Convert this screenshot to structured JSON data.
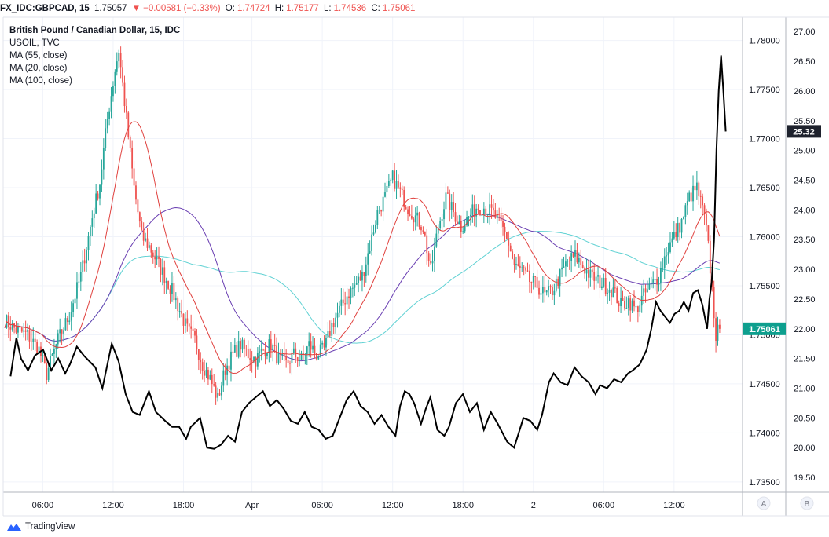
{
  "header": {
    "symbol": "FX_IDC:GBPCAD, 15",
    "last": "1.75057",
    "change_icon": "down-triangle-icon",
    "change": "−0.00581 (−0.33%)",
    "open_label": "O:",
    "open": "1.74724",
    "high_label": "H:",
    "high": "1.75177",
    "low_label": "L:",
    "low": "1.74536",
    "close_label": "C:",
    "close": "1.75061"
  },
  "legend": {
    "title": "British Pound / Canadian Dollar, 15, IDC",
    "items": [
      "USOIL, TVC",
      "MA (55, close)",
      "MA (20, close)",
      "MA (100, close)"
    ]
  },
  "footer": {
    "logo_icon": "tradingview-logo-icon",
    "brand": "TradingView"
  },
  "axis_buttons": [
    "A",
    "B"
  ],
  "colors": {
    "up": "#26a69a",
    "down": "#ef5350",
    "ma20": "#e0413e",
    "ma55": "#6a3fb2",
    "ma100": "#5fd1d3",
    "usoil": "#000000",
    "price_tag": "#1e222d"
  },
  "chart_data": {
    "type": "candlestick",
    "title": "British Pound / Canadian Dollar, 15, IDC",
    "x_ticks": [
      "06:00",
      "12:00",
      "18:00",
      "Apr",
      "06:00",
      "12:00",
      "18:00",
      "2",
      "06:00",
      "12:00"
    ],
    "y_left": {
      "ticks": [
        "1.78000",
        "1.77500",
        "1.77000",
        "1.76500",
        "1.76000",
        "1.75500",
        "1.75000",
        "1.74500",
        "1.74000",
        "1.73500"
      ],
      "range": [
        1.73395,
        1.78237
      ]
    },
    "y_right": {
      "ticks": [
        "27.00",
        "26.50",
        "26.00",
        "25.50",
        "25.00",
        "24.50",
        "24.00",
        "23.50",
        "23.00",
        "22.50",
        "22.00",
        "21.50",
        "21.00",
        "20.50",
        "20.00",
        "19.50"
      ],
      "range": [
        19.25,
        27.24
      ]
    },
    "current_price_label": "1.75061",
    "current_usoil_label": "25.32",
    "price_anchors": [
      [
        0,
        1.7515
      ],
      [
        6,
        1.7505
      ],
      [
        12,
        1.75
      ],
      [
        18,
        1.7485
      ],
      [
        22,
        1.746
      ],
      [
        28,
        1.7495
      ],
      [
        34,
        1.752
      ],
      [
        40,
        1.756
      ],
      [
        46,
        1.762
      ],
      [
        50,
        1.7655
      ],
      [
        54,
        1.772
      ],
      [
        58,
        1.777
      ],
      [
        60,
        1.779
      ],
      [
        64,
        1.772
      ],
      [
        68,
        1.765
      ],
      [
        72,
        1.76
      ],
      [
        76,
        1.759
      ],
      [
        80,
        1.7575
      ],
      [
        84,
        1.756
      ],
      [
        88,
        1.7545
      ],
      [
        92,
        1.7525
      ],
      [
        96,
        1.7505
      ],
      [
        100,
        1.7495
      ],
      [
        104,
        1.747
      ],
      [
        108,
        1.7455
      ],
      [
        112,
        1.7435
      ],
      [
        116,
        1.7465
      ],
      [
        120,
        1.748
      ],
      [
        124,
        1.749
      ],
      [
        128,
        1.748
      ],
      [
        132,
        1.7475
      ],
      [
        136,
        1.7485
      ],
      [
        140,
        1.749
      ],
      [
        144,
        1.7475
      ],
      [
        148,
        1.747
      ],
      [
        152,
        1.748
      ],
      [
        156,
        1.7475
      ],
      [
        160,
        1.749
      ],
      [
        164,
        1.748
      ],
      [
        168,
        1.7485
      ],
      [
        172,
        1.751
      ],
      [
        176,
        1.7525
      ],
      [
        180,
        1.754
      ],
      [
        184,
        1.755
      ],
      [
        188,
        1.756
      ],
      [
        192,
        1.759
      ],
      [
        196,
        1.7625
      ],
      [
        200,
        1.764
      ],
      [
        204,
        1.766
      ],
      [
        208,
        1.7645
      ],
      [
        212,
        1.763
      ],
      [
        216,
        1.762
      ],
      [
        220,
        1.761
      ],
      [
        224,
        1.7565
      ],
      [
        228,
        1.761
      ],
      [
        232,
        1.764
      ],
      [
        236,
        1.7625
      ],
      [
        240,
        1.761
      ],
      [
        244,
        1.762
      ],
      [
        248,
        1.763
      ],
      [
        252,
        1.763
      ],
      [
        256,
        1.7625
      ],
      [
        260,
        1.7615
      ],
      [
        264,
        1.76
      ],
      [
        268,
        1.757
      ],
      [
        272,
        1.7565
      ],
      [
        276,
        1.7555
      ],
      [
        280,
        1.755
      ],
      [
        284,
        1.754
      ],
      [
        288,
        1.7545
      ],
      [
        292,
        1.756
      ],
      [
        296,
        1.7575
      ],
      [
        300,
        1.758
      ],
      [
        304,
        1.757
      ],
      [
        308,
        1.756
      ],
      [
        312,
        1.7555
      ],
      [
        316,
        1.755
      ],
      [
        320,
        1.7545
      ],
      [
        324,
        1.753
      ],
      [
        328,
        1.7535
      ],
      [
        332,
        1.7525
      ],
      [
        336,
        1.754
      ],
      [
        340,
        1.755
      ],
      [
        344,
        1.756
      ],
      [
        348,
        1.7585
      ],
      [
        352,
        1.76
      ],
      [
        356,
        1.7615
      ],
      [
        360,
        1.764
      ],
      [
        364,
        1.765
      ],
      [
        368,
        1.762
      ],
      [
        370,
        1.759
      ],
      [
        372,
        1.7545
      ],
      [
        374,
        1.75
      ],
      [
        376,
        1.7506
      ]
    ],
    "usoil_points": [
      [
        5,
        21.2
      ],
      [
        10,
        21.85
      ],
      [
        14,
        21.5
      ],
      [
        20,
        21.3
      ],
      [
        26,
        21.55
      ],
      [
        33,
        21.65
      ],
      [
        40,
        21.3
      ],
      [
        46,
        21.5
      ],
      [
        52,
        21.25
      ],
      [
        56,
        21.4
      ],
      [
        62,
        21.7
      ],
      [
        68,
        21.55
      ],
      [
        78,
        21.35
      ],
      [
        84,
        21.0
      ],
      [
        92,
        21.75
      ],
      [
        98,
        21.45
      ],
      [
        104,
        20.9
      ],
      [
        110,
        20.6
      ],
      [
        116,
        20.55
      ],
      [
        124,
        20.95
      ],
      [
        130,
        20.6
      ],
      [
        138,
        20.45
      ],
      [
        144,
        20.35
      ],
      [
        150,
        20.35
      ],
      [
        156,
        20.15
      ],
      [
        160,
        20.35
      ],
      [
        168,
        20.5
      ],
      [
        174,
        20.0
      ],
      [
        180,
        19.98
      ],
      [
        186,
        20.05
      ],
      [
        192,
        20.2
      ],
      [
        198,
        20.1
      ],
      [
        204,
        20.6
      ],
      [
        210,
        20.75
      ],
      [
        216,
        20.85
      ],
      [
        222,
        20.95
      ],
      [
        228,
        20.7
      ],
      [
        234,
        20.8
      ],
      [
        240,
        20.65
      ],
      [
        246,
        20.45
      ],
      [
        252,
        20.4
      ],
      [
        258,
        20.6
      ],
      [
        264,
        20.35
      ],
      [
        270,
        20.3
      ],
      [
        276,
        20.15
      ],
      [
        282,
        20.2
      ],
      [
        288,
        20.5
      ],
      [
        294,
        20.8
      ],
      [
        300,
        20.95
      ],
      [
        306,
        20.7
      ],
      [
        312,
        20.6
      ],
      [
        318,
        20.4
      ],
      [
        324,
        20.55
      ],
      [
        330,
        20.35
      ],
      [
        336,
        20.2
      ],
      [
        340,
        20.7
      ],
      [
        344,
        20.95
      ],
      [
        348,
        20.9
      ],
      [
        352,
        20.75
      ],
      [
        358,
        20.4
      ],
      [
        362,
        20.65
      ],
      [
        366,
        20.85
      ],
      [
        372,
        20.3
      ],
      [
        378,
        20.2
      ],
      [
        382,
        20.35
      ],
      [
        388,
        20.75
      ],
      [
        394,
        20.9
      ],
      [
        400,
        20.6
      ],
      [
        406,
        20.75
      ],
      [
        412,
        20.3
      ],
      [
        418,
        20.6
      ],
      [
        424,
        20.4
      ],
      [
        432,
        20.1
      ],
      [
        438,
        20.0
      ],
      [
        442,
        20.25
      ],
      [
        446,
        20.5
      ],
      [
        452,
        20.45
      ],
      [
        458,
        20.3
      ],
      [
        462,
        20.55
      ],
      [
        468,
        21.1
      ],
      [
        472,
        21.25
      ],
      [
        478,
        21.1
      ],
      [
        484,
        21.05
      ],
      [
        490,
        21.35
      ],
      [
        496,
        21.2
      ],
      [
        502,
        21.1
      ],
      [
        508,
        20.9
      ],
      [
        512,
        21.05
      ],
      [
        518,
        21.0
      ],
      [
        524,
        21.15
      ],
      [
        530,
        21.1
      ],
      [
        536,
        21.25
      ],
      [
        540,
        21.3
      ],
      [
        546,
        21.4
      ],
      [
        552,
        21.65
      ],
      [
        556,
        22.0
      ],
      [
        560,
        22.45
      ],
      [
        564,
        22.3
      ],
      [
        568,
        22.2
      ],
      [
        572,
        22.1
      ],
      [
        576,
        22.25
      ],
      [
        580,
        22.3
      ],
      [
        584,
        22.45
      ],
      [
        588,
        22.3
      ],
      [
        592,
        22.6
      ],
      [
        596,
        22.65
      ],
      [
        600,
        22.4
      ],
      [
        604,
        22.0
      ],
      [
        606,
        22.5
      ],
      [
        608,
        22.8
      ],
      [
        610,
        23.5
      ],
      [
        612,
        25.0
      ],
      [
        614,
        26.0
      ],
      [
        616,
        26.6
      ],
      [
        618,
        26.0
      ],
      [
        620,
        25.32
      ]
    ]
  }
}
